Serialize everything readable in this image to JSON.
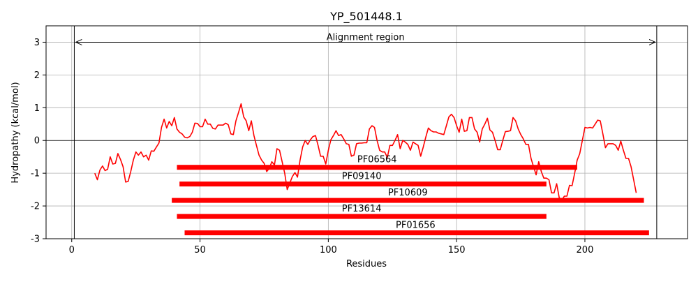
{
  "chart_data": {
    "type": "line",
    "title": "YP_501448.1",
    "xlabel": "Residues",
    "ylabel": "Hydropathy (kcal/mol)",
    "xlim": [
      -10,
      240
    ],
    "ylim": [
      -3,
      3.5
    ],
    "xticks": [
      0,
      50,
      100,
      150,
      200
    ],
    "yticks": [
      -3,
      -2,
      -1,
      0,
      1,
      2,
      3
    ],
    "grid": true,
    "hydropathy_color": "#ff0000",
    "domain_color": "#ff0000",
    "hydropathy": {
      "x": [
        9,
        10,
        11,
        12,
        13,
        14,
        15,
        16,
        17,
        18,
        19,
        20,
        21,
        22,
        23,
        24,
        25,
        26,
        27,
        28,
        29,
        30,
        31,
        32,
        33,
        34,
        35,
        36,
        37,
        38,
        39,
        40,
        41,
        42,
        43,
        44,
        45,
        46,
        47,
        48,
        49,
        50,
        51,
        52,
        53,
        54,
        55,
        56,
        57,
        58,
        59,
        60,
        61,
        62,
        63,
        64,
        65,
        66,
        67,
        68,
        69,
        70,
        71,
        72,
        73,
        74,
        75,
        76,
        77,
        78,
        79,
        80,
        81,
        82,
        83,
        84,
        85,
        86,
        87,
        88,
        89,
        90,
        91,
        92,
        93,
        94,
        95,
        96,
        97,
        98,
        99,
        100,
        101,
        102,
        103,
        104,
        105,
        106,
        107,
        108,
        109,
        110,
        111,
        112,
        113,
        114,
        115,
        116,
        117,
        118,
        119,
        120,
        121,
        122,
        123,
        124,
        125,
        126,
        127,
        128,
        129,
        130,
        131,
        132,
        133,
        134,
        135,
        136,
        137,
        138,
        139,
        140,
        141,
        142,
        143,
        144,
        145,
        146,
        147,
        148,
        149,
        150,
        151,
        152,
        153,
        154,
        155,
        156,
        157,
        158,
        159,
        160,
        161,
        162,
        163,
        164,
        165,
        166,
        167,
        168,
        169,
        170,
        171,
        172,
        173,
        174,
        175,
        176,
        177,
        178,
        179,
        180,
        181,
        182,
        183,
        184,
        185,
        186,
        187,
        188,
        189,
        190,
        191,
        192,
        193,
        194,
        195,
        196,
        197,
        198,
        199,
        200,
        201,
        202,
        203,
        204,
        205,
        206,
        207,
        208,
        209,
        210,
        211,
        212,
        213,
        214,
        215,
        216,
        217,
        218,
        219,
        220
      ],
      "y": [
        -1.0,
        -1.2,
        -0.9,
        -0.78,
        -0.92,
        -0.88,
        -0.5,
        -0.72,
        -0.7,
        -0.4,
        -0.58,
        -0.8,
        -1.27,
        -1.25,
        -0.95,
        -0.6,
        -0.35,
        -0.45,
        -0.35,
        -0.5,
        -0.45,
        -0.6,
        -0.32,
        -0.33,
        -0.2,
        -0.08,
        0.4,
        0.65,
        0.38,
        0.58,
        0.45,
        0.7,
        0.35,
        0.25,
        0.2,
        0.1,
        0.08,
        0.12,
        0.25,
        0.53,
        0.52,
        0.42,
        0.42,
        0.65,
        0.5,
        0.5,
        0.37,
        0.35,
        0.47,
        0.47,
        0.47,
        0.53,
        0.48,
        0.2,
        0.18,
        0.6,
        0.85,
        1.12,
        0.72,
        0.6,
        0.3,
        0.6,
        0.15,
        -0.15,
        -0.45,
        -0.6,
        -0.7,
        -0.95,
        -0.85,
        -0.65,
        -0.75,
        -0.25,
        -0.3,
        -0.65,
        -1.0,
        -1.5,
        -1.3,
        -1.1,
        -0.98,
        -1.12,
        -0.6,
        -0.2,
        0.0,
        -0.12,
        0.02,
        0.12,
        0.15,
        -0.15,
        -0.48,
        -0.48,
        -0.72,
        -0.3,
        0.02,
        0.15,
        0.3,
        0.15,
        0.18,
        0.05,
        -0.1,
        -0.12,
        -0.48,
        -0.45,
        -0.1,
        -0.08,
        -0.08,
        -0.07,
        -0.07,
        0.35,
        0.45,
        0.4,
        0.0,
        -0.3,
        -0.35,
        -0.35,
        -0.52,
        -0.15,
        -0.15,
        0.0,
        0.18,
        -0.25,
        0.0,
        -0.05,
        -0.12,
        -0.3,
        -0.05,
        -0.1,
        -0.15,
        -0.48,
        -0.2,
        0.1,
        0.38,
        0.3,
        0.26,
        0.26,
        0.22,
        0.2,
        0.18,
        0.45,
        0.72,
        0.8,
        0.7,
        0.45,
        0.25,
        0.65,
        0.28,
        0.3,
        0.7,
        0.7,
        0.35,
        0.25,
        -0.05,
        0.35,
        0.5,
        0.68,
        0.32,
        0.25,
        0.0,
        -0.28,
        -0.28,
        0.0,
        0.27,
        0.28,
        0.3,
        0.7,
        0.6,
        0.35,
        0.18,
        0.05,
        -0.12,
        -0.12,
        -0.55,
        -0.8,
        -1.05,
        -0.65,
        -0.95,
        -1.15,
        -1.15,
        -1.2,
        -1.6,
        -1.6,
        -1.32,
        -1.75,
        -1.82,
        -1.7,
        -1.7,
        -1.37,
        -1.38,
        -1.0,
        -0.6,
        -0.4,
        0.0,
        0.4,
        0.38,
        0.4,
        0.38,
        0.5,
        0.62,
        0.6,
        0.2,
        -0.22,
        -0.1,
        -0.1,
        -0.1,
        -0.15,
        -0.3,
        -0.02,
        -0.3,
        -0.55,
        -0.55,
        -0.8,
        -1.2,
        -1.6
      ]
    },
    "alignment_region": {
      "label": "Alignment region",
      "start": 1,
      "end": 228,
      "y": 3
    },
    "domains": [
      {
        "name": "PF06564",
        "start": 41,
        "end": 197,
        "y": -0.82,
        "label_x": 119
      },
      {
        "name": "PF09140",
        "start": 42,
        "end": 185,
        "y": -1.33,
        "label_x": 113
      },
      {
        "name": "PF10609",
        "start": 39,
        "end": 223,
        "y": -1.83,
        "label_x": 131
      },
      {
        "name": "PF13614",
        "start": 41,
        "end": 185,
        "y": -2.32,
        "label_x": 113
      },
      {
        "name": "PF01656",
        "start": 44,
        "end": 225,
        "y": -2.82,
        "label_x": 134
      }
    ]
  }
}
